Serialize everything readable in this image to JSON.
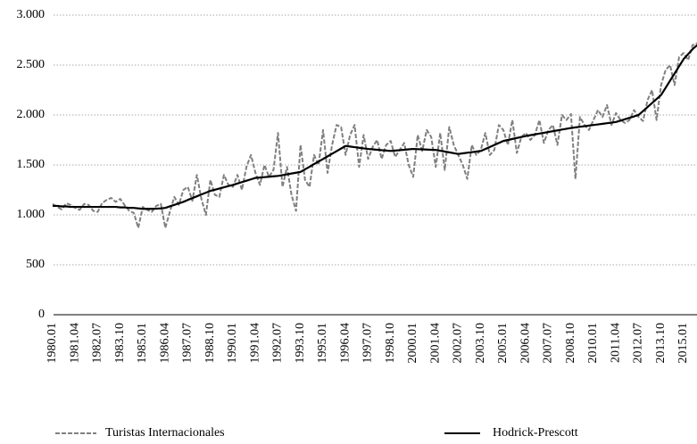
{
  "chart_data": {
    "type": "line",
    "categories": [
      "1980.01",
      null,
      null,
      null,
      null,
      "1981.04",
      null,
      null,
      null,
      null,
      "1982.07",
      null,
      null,
      null,
      null,
      "1983.10",
      null,
      null,
      null,
      null,
      "1985.01",
      null,
      null,
      null,
      null,
      "1986.04",
      null,
      null,
      null,
      null,
      "1987.07",
      null,
      null,
      null,
      null,
      "1988.10",
      null,
      null,
      null,
      null,
      "1990.01",
      null,
      null,
      null,
      null,
      "1991.04",
      null,
      null,
      null,
      null,
      "1992.07",
      null,
      null,
      null,
      null,
      "1993.10",
      null,
      null,
      null,
      null,
      "1995.01",
      null,
      null,
      null,
      null,
      "1996.04",
      null,
      null,
      null,
      null,
      "1997.07",
      null,
      null,
      null,
      null,
      "1998.10",
      null,
      null,
      null,
      null,
      "2000.01",
      null,
      null,
      null,
      null,
      "2001.04",
      null,
      null,
      null,
      null,
      "2002.07",
      null,
      null,
      null,
      null,
      "2003.10",
      null,
      null,
      null,
      null,
      "2005.01",
      null,
      null,
      null,
      null,
      "2006.04",
      null,
      null,
      null,
      null,
      "2007.07",
      null,
      null,
      null,
      null,
      "2008.10",
      null,
      null,
      null,
      null,
      "2010.01",
      null,
      null,
      null,
      null,
      "2011.04",
      null,
      null,
      null,
      null,
      "2012.07",
      null,
      null,
      null,
      null,
      "2013.10",
      null,
      null,
      null,
      null,
      "2015.01",
      null,
      null,
      null
    ],
    "series": [
      {
        "name": "Turistas Internacionales",
        "color": "#808080",
        "dashed": true,
        "values": [
          1110,
          1080,
          1055,
          1115,
          1100,
          1070,
          1050,
          1110,
          1100,
          1040,
          1030,
          1120,
          1150,
          1170,
          1130,
          1160,
          1095,
          1040,
          1020,
          870,
          1080,
          1050,
          1030,
          1090,
          1110,
          870,
          1030,
          1180,
          1100,
          1250,
          1280,
          1140,
          1400,
          1160,
          1000,
          1350,
          1200,
          1180,
          1400,
          1300,
          1280,
          1400,
          1250,
          1480,
          1600,
          1420,
          1300,
          1500,
          1380,
          1450,
          1820,
          1280,
          1480,
          1200,
          1040,
          1700,
          1350,
          1280,
          1600,
          1500,
          1850,
          1420,
          1700,
          1900,
          1880,
          1600,
          1800,
          1900,
          1480,
          1800,
          1560,
          1680,
          1750,
          1560,
          1700,
          1740,
          1580,
          1650,
          1720,
          1500,
          1380,
          1800,
          1640,
          1850,
          1780,
          1480,
          1820,
          1450,
          1880,
          1700,
          1600,
          1500,
          1360,
          1700,
          1600,
          1650,
          1820,
          1600,
          1650,
          1900,
          1850,
          1700,
          1950,
          1620,
          1780,
          1820,
          1750,
          1800,
          1950,
          1720,
          1850,
          1900,
          1700,
          2000,
          1950,
          2010,
          1360,
          1980,
          1900,
          1850,
          1950,
          2050,
          1980,
          2100,
          1900,
          2020,
          1950,
          1920,
          1950,
          2050,
          1980,
          1940,
          2150,
          2250,
          1950,
          2300,
          2450,
          2500,
          2300,
          2580,
          2620,
          2550,
          2700,
          2720
        ]
      },
      {
        "name": "Hodrick-Prescott",
        "color": "#000000",
        "dashed": false,
        "values": [
          1090,
          1090,
          1085,
          1085,
          1080,
          1080,
          1080,
          1080,
          1080,
          1080,
          1080,
          1080,
          1080,
          1080,
          1080,
          1075,
          1075,
          1070,
          1070,
          1065,
          1060,
          1060,
          1060,
          1062,
          1065,
          1070,
          1085,
          1100,
          1115,
          1130,
          1150,
          1168,
          1186,
          1204,
          1222,
          1240,
          1252,
          1264,
          1276,
          1288,
          1300,
          1314,
          1328,
          1342,
          1356,
          1370,
          1374,
          1378,
          1382,
          1386,
          1390,
          1398,
          1406,
          1414,
          1422,
          1430,
          1456,
          1482,
          1508,
          1534,
          1560,
          1586,
          1612,
          1638,
          1664,
          1690,
          1684,
          1678,
          1672,
          1666,
          1660,
          1656,
          1652,
          1648,
          1644,
          1640,
          1644,
          1648,
          1652,
          1656,
          1660,
          1658,
          1656,
          1654,
          1652,
          1650,
          1642,
          1634,
          1626,
          1618,
          1610,
          1616,
          1622,
          1628,
          1634,
          1640,
          1660,
          1680,
          1700,
          1720,
          1740,
          1750,
          1760,
          1770,
          1780,
          1790,
          1798,
          1806,
          1814,
          1822,
          1830,
          1838,
          1846,
          1854,
          1862,
          1870,
          1876,
          1882,
          1888,
          1894,
          1900,
          1906,
          1912,
          1918,
          1924,
          1930,
          1944,
          1958,
          1972,
          1986,
          2000,
          2040,
          2080,
          2120,
          2160,
          2200,
          2272,
          2344,
          2416,
          2488,
          2560,
          2610,
          2660,
          2700
        ]
      }
    ],
    "ylim": [
      0,
      3000
    ],
    "yticks": [
      0,
      500,
      {
        "value": 1000,
        "label": "1.000"
      },
      {
        "value": 1500,
        "label": "1.500"
      },
      {
        "value": 2000,
        "label": "2.000"
      },
      {
        "value": 2500,
        "label": "2.500"
      },
      {
        "value": 3000,
        "label": "3.000"
      }
    ],
    "grid": true
  }
}
